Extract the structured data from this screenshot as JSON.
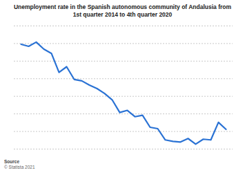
{
  "chart_data": {
    "type": "line",
    "title": "Unemployment rate in the Spanish autonomous community of Andalusia from 1st quarter 2014 to 4th quarter 2020",
    "categories": [
      null,
      null,
      null,
      null,
      null,
      null,
      null,
      null,
      null,
      null,
      null,
      null,
      null,
      null,
      null,
      null,
      null,
      null,
      null,
      null,
      null,
      null,
      null,
      null,
      null,
      null,
      null,
      null
    ],
    "values": [
      34.9,
      34.6,
      35.2,
      34.2,
      33.6,
      30.9,
      31.7,
      29.9,
      29.7,
      29.1,
      28.6,
      27.9,
      27.0,
      25.2,
      25.5,
      24.6,
      24.8,
      23.1,
      22.9,
      21.3,
      21.1,
      21.0,
      21.5,
      20.7,
      21.4,
      21.3,
      23.8,
      22.8
    ],
    "color": "#2a72d4",
    "ylim": [
      20,
      37.5
    ],
    "yticks": [
      20,
      22.5,
      25,
      27.5,
      30,
      32.5,
      35,
      37.5
    ],
    "grid": true,
    "tick_labels": false,
    "source_title": "Source",
    "source": "© Statista 2021"
  }
}
